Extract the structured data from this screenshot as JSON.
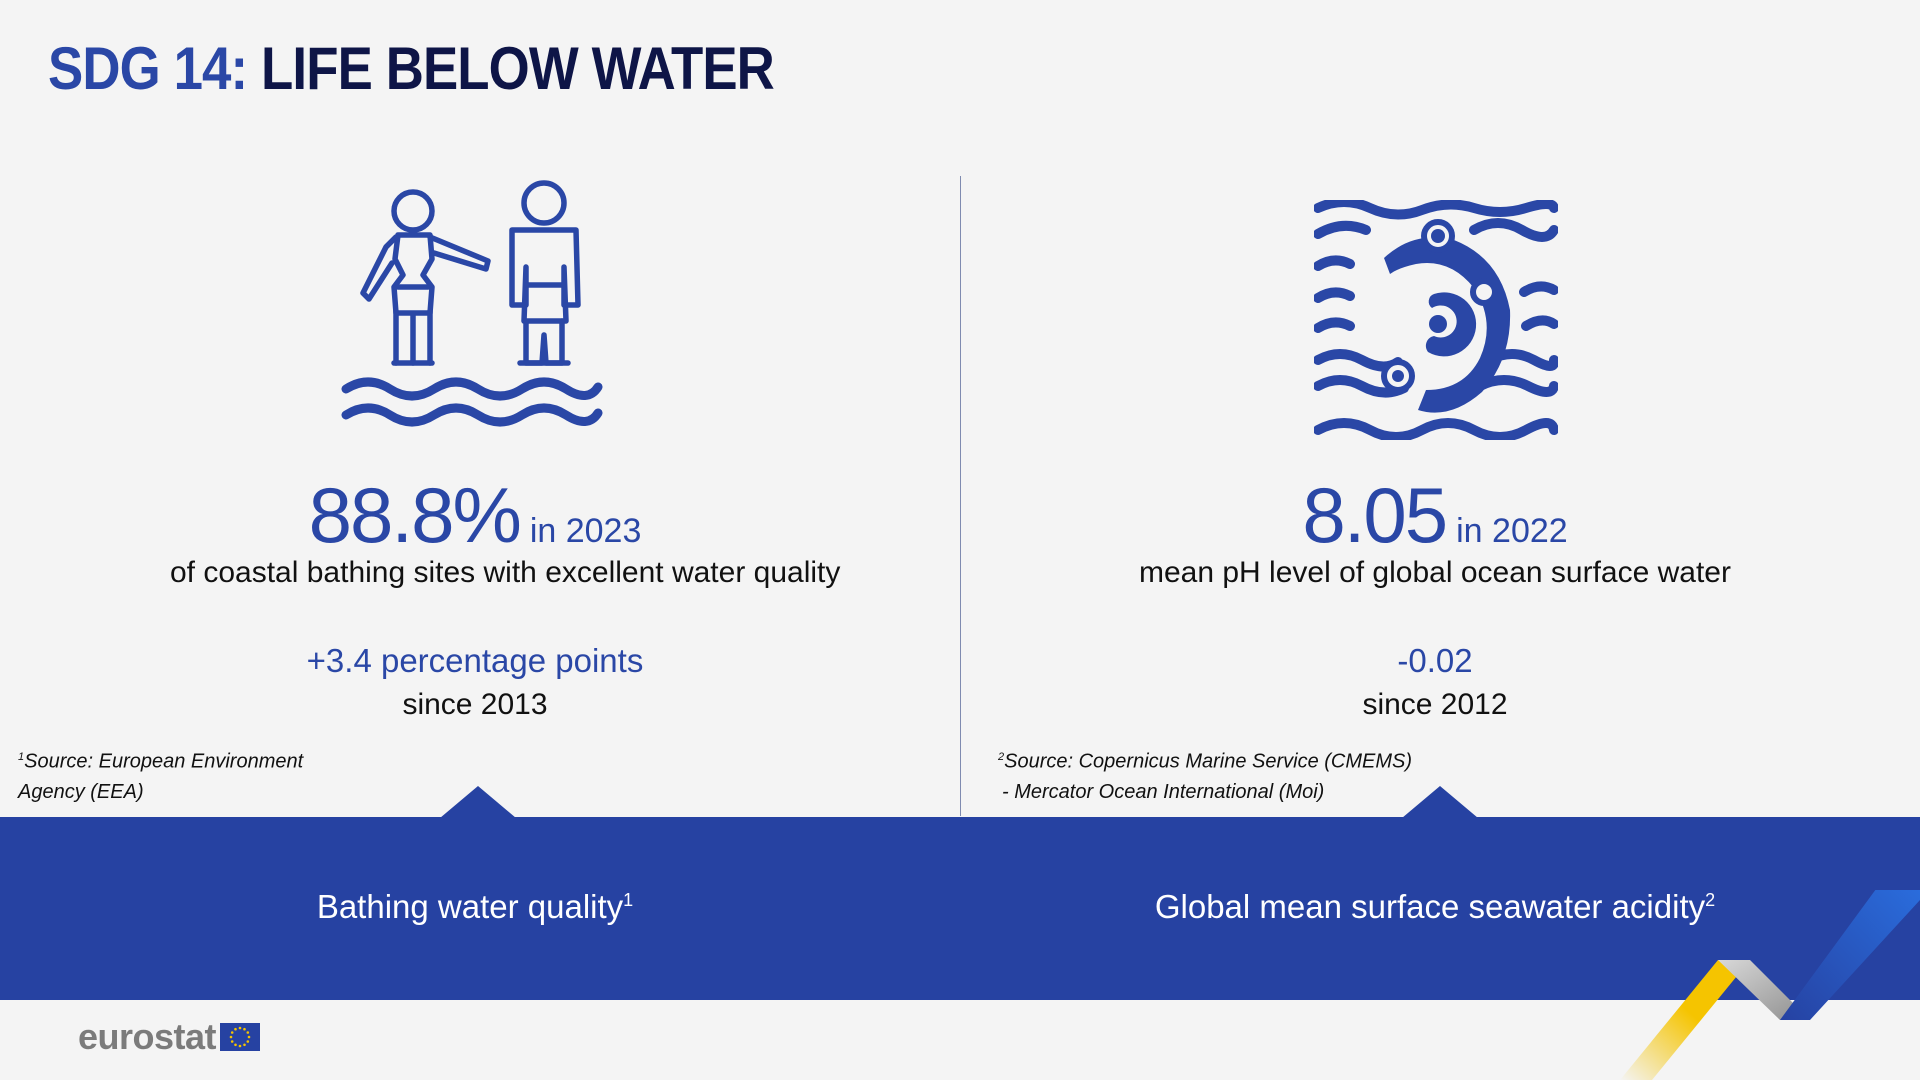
{
  "title": {
    "prefix": "SDG 14:",
    "main": "LIFE BELOW WATER"
  },
  "colors": {
    "primary_blue": "#2642a2",
    "title_dark": "#0e1547",
    "background": "#f4f4f4",
    "accent_yellow": "#f5c400",
    "accent_gray": "#a6a6a6"
  },
  "left": {
    "icon": "swimmers-icon",
    "value": "88.8%",
    "year_label": "in 2023",
    "description": "of coastal bathing sites with excellent water quality",
    "change": "+3.4 percentage points",
    "since": "since 2013",
    "source_number": "1",
    "source_line1": "Source: European Environment",
    "source_line2": "Agency (EEA)",
    "band_label": "Bathing water quality",
    "band_footnote": "1"
  },
  "right": {
    "icon": "ocean-waves-icon",
    "value": "8.05",
    "year_label": "in 2022",
    "description": "mean pH level of global ocean surface water",
    "change": "-0.02",
    "since": "since 2012",
    "source_number": "2",
    "source_line1": "Source: Copernicus Marine Service (CMEMS)",
    "source_line2": "-  Mercator Ocean International (Moi)",
    "band_label": "Global mean surface seawater acidity",
    "band_footnote": "2"
  },
  "logo": {
    "text": "eurostat",
    "flag_icon": "eu-flag-icon"
  }
}
